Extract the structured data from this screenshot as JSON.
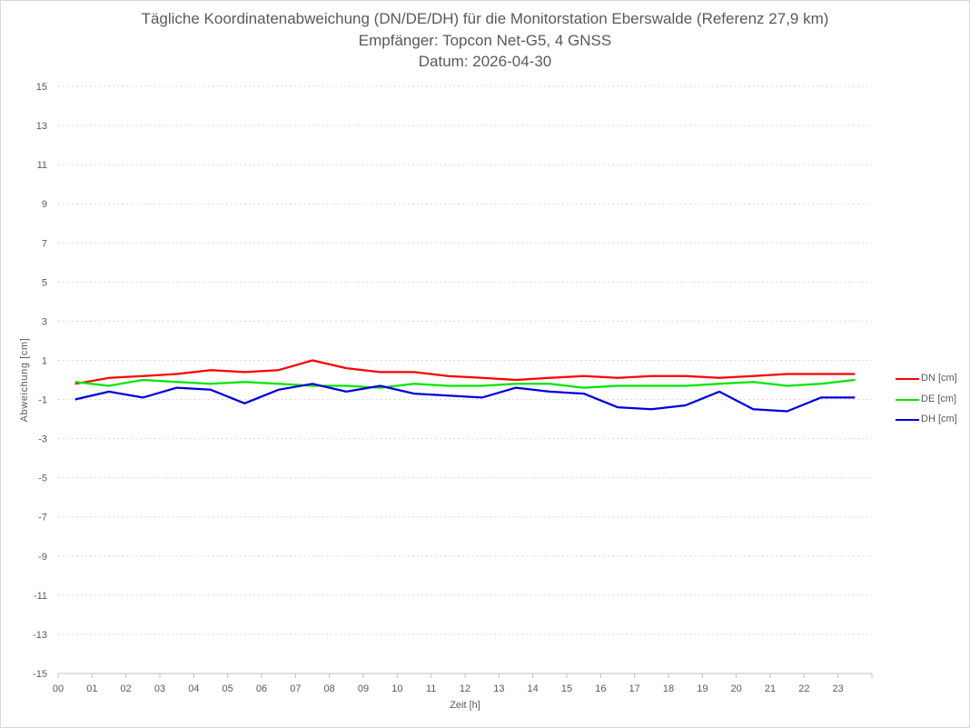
{
  "chart_data": {
    "type": "line",
    "title": "Tägliche Koordinatenabweichung (DN/DE/DH) für die Monitorstation Eberswalde (Referenz 27,9 km)",
    "subtitle": "Empfänger: Topcon Net-G5, 4 GNSS",
    "date_line": "Datum: 2026-04-30",
    "xlabel": "Zeit [h]",
    "ylabel": "Abweichung [cm]",
    "xlim": [
      0,
      24
    ],
    "ylim": [
      -15,
      15
    ],
    "x_ticks": [
      "00",
      "01",
      "02",
      "03",
      "04",
      "05",
      "06",
      "07",
      "08",
      "09",
      "10",
      "11",
      "12",
      "13",
      "14",
      "15",
      "16",
      "17",
      "18",
      "19",
      "20",
      "21",
      "22",
      "23"
    ],
    "y_ticks": [
      15,
      13,
      11,
      9,
      7,
      5,
      3,
      1,
      -1,
      -3,
      -5,
      -7,
      -9,
      -11,
      -13,
      -15
    ],
    "grid": true,
    "legend_position": "right",
    "sample_interval_h": 1,
    "series": [
      {
        "name": "DN [cm]",
        "color": "#ff0000",
        "values": [
          -0.2,
          0.1,
          0.2,
          0.3,
          0.5,
          0.4,
          0.5,
          1.0,
          0.6,
          0.4,
          0.4,
          0.2,
          0.1,
          0.0,
          0.1,
          0.2,
          0.1,
          0.2,
          0.2,
          0.1,
          0.2,
          0.3,
          0.3,
          0.3
        ]
      },
      {
        "name": "DE [cm]",
        "color": "#00e600",
        "values": [
          -0.1,
          -0.3,
          0.0,
          -0.1,
          -0.2,
          -0.1,
          -0.2,
          -0.3,
          -0.3,
          -0.4,
          -0.2,
          -0.3,
          -0.3,
          -0.2,
          -0.2,
          -0.4,
          -0.3,
          -0.3,
          -0.3,
          -0.2,
          -0.1,
          -0.3,
          -0.2,
          0.0
        ]
      },
      {
        "name": "DH [cm]",
        "color": "#0000dd",
        "values": [
          -1.0,
          -0.6,
          -0.9,
          -0.4,
          -0.5,
          -1.2,
          -0.5,
          -0.2,
          -0.6,
          -0.3,
          -0.7,
          -0.8,
          -0.9,
          -0.4,
          -0.6,
          -0.7,
          -1.4,
          -1.5,
          -1.3,
          -0.6,
          -1.5,
          -1.6,
          -0.9,
          -0.9
        ]
      }
    ]
  }
}
